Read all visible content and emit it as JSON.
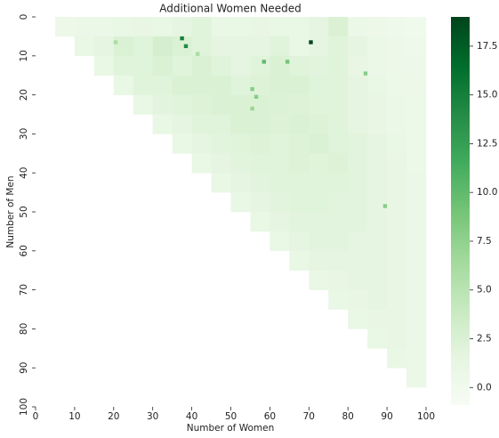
{
  "chart_data": {
    "type": "heatmap",
    "title": "Additional Women Needed",
    "x_label": "Number of Women",
    "y_label": "Number of Men",
    "xlim": [
      0,
      100
    ],
    "ylim": [
      0,
      100
    ],
    "xticks": [
      0,
      10,
      20,
      30,
      40,
      50,
      60,
      70,
      80,
      90,
      100
    ],
    "yticks": [
      0,
      10,
      20,
      30,
      40,
      50,
      60,
      70,
      80,
      90,
      100
    ],
    "xbins": [
      0,
      5,
      10,
      15,
      20,
      25,
      30,
      35,
      40,
      45,
      50,
      55,
      60,
      65,
      70,
      75,
      80,
      85,
      90,
      95,
      100
    ],
    "ybins": [
      0,
      5,
      10,
      15,
      20,
      25,
      30,
      35,
      40,
      45,
      50,
      55,
      60,
      65,
      70,
      75,
      80,
      85,
      90,
      95,
      100
    ],
    "z": [
      [
        null,
        0.5,
        0.8,
        0.7,
        1,
        1.2,
        1,
        1.5,
        2,
        1,
        1,
        1.2,
        1,
        1,
        1.5,
        2.5,
        0.8,
        0.5,
        0.3,
        0.2
      ],
      [
        null,
        null,
        1,
        1.5,
        2.5,
        2,
        3,
        2.5,
        2,
        1.5,
        1.5,
        1.5,
        2,
        1,
        1.5,
        2,
        1.5,
        0.8,
        0.5,
        0.3
      ],
      [
        null,
        null,
        null,
        1,
        2,
        2,
        2.5,
        2,
        2.5,
        2,
        1.5,
        2,
        2.5,
        2,
        1.8,
        2,
        1.2,
        0.8,
        0.5,
        0.4
      ],
      [
        null,
        null,
        null,
        null,
        1,
        2,
        2,
        2.5,
        2.5,
        2.5,
        2,
        2.2,
        2.5,
        2.5,
        2,
        2,
        1.5,
        1,
        0.6,
        0.5
      ],
      [
        null,
        null,
        null,
        null,
        null,
        1,
        1.8,
        2,
        2.2,
        2.5,
        2.5,
        2.5,
        2.3,
        2.2,
        2,
        2,
        1.5,
        1.2,
        0.8,
        0.6
      ],
      [
        null,
        null,
        null,
        null,
        null,
        null,
        1,
        1.5,
        2,
        2,
        2.5,
        2.5,
        2.2,
        2.5,
        2.2,
        2,
        1.5,
        1.2,
        0.8,
        0.6
      ],
      [
        null,
        null,
        null,
        null,
        null,
        null,
        null,
        1,
        1.5,
        1.8,
        2,
        2.2,
        2,
        2.2,
        2.5,
        2,
        1.8,
        1.5,
        1,
        0.6
      ],
      [
        null,
        null,
        null,
        null,
        null,
        null,
        null,
        null,
        1,
        1.5,
        1.8,
        2,
        2,
        2.2,
        2,
        2.2,
        1.8,
        1.5,
        1.2,
        0.6
      ],
      [
        null,
        null,
        null,
        null,
        null,
        null,
        null,
        null,
        null,
        1,
        1.5,
        1.8,
        2,
        2,
        2,
        2,
        1.8,
        1.5,
        1.2,
        0.8
      ],
      [
        null,
        null,
        null,
        null,
        null,
        null,
        null,
        null,
        null,
        null,
        1,
        1.5,
        1.8,
        2,
        2,
        1.8,
        1.8,
        1.5,
        1.2,
        0.8
      ],
      [
        null,
        null,
        null,
        null,
        null,
        null,
        null,
        null,
        null,
        null,
        null,
        1,
        1.5,
        1.8,
        1.8,
        1.8,
        1.8,
        1.5,
        1.2,
        0.8
      ],
      [
        null,
        null,
        null,
        null,
        null,
        null,
        null,
        null,
        null,
        null,
        null,
        null,
        1,
        1.5,
        1.8,
        1.8,
        1.5,
        1.5,
        1.2,
        0.8
      ],
      [
        null,
        null,
        null,
        null,
        null,
        null,
        null,
        null,
        null,
        null,
        null,
        null,
        null,
        1,
        1.5,
        1.5,
        1.5,
        1.5,
        1.2,
        0.8
      ],
      [
        null,
        null,
        null,
        null,
        null,
        null,
        null,
        null,
        null,
        null,
        null,
        null,
        null,
        null,
        1,
        1.2,
        1.5,
        1.5,
        1.2,
        0.8
      ],
      [
        null,
        null,
        null,
        null,
        null,
        null,
        null,
        null,
        null,
        null,
        null,
        null,
        null,
        null,
        null,
        1,
        1.2,
        1.5,
        1.2,
        0.8
      ],
      [
        null,
        null,
        null,
        null,
        null,
        null,
        null,
        null,
        null,
        null,
        null,
        null,
        null,
        null,
        null,
        null,
        1,
        1.2,
        1.2,
        0.8
      ],
      [
        null,
        null,
        null,
        null,
        null,
        null,
        null,
        null,
        null,
        null,
        null,
        null,
        null,
        null,
        null,
        null,
        null,
        1,
        1.2,
        0.8
      ],
      [
        null,
        null,
        null,
        null,
        null,
        null,
        null,
        null,
        null,
        null,
        null,
        null,
        null,
        null,
        null,
        null,
        null,
        null,
        1,
        0.8
      ],
      [
        null,
        null,
        null,
        null,
        null,
        null,
        null,
        null,
        null,
        null,
        null,
        null,
        null,
        null,
        null,
        null,
        null,
        null,
        null,
        0.8
      ],
      [
        null,
        null,
        null,
        null,
        null,
        null,
        null,
        null,
        null,
        null,
        null,
        null,
        null,
        null,
        null,
        null,
        null,
        null,
        null,
        null
      ]
    ],
    "highlights": {
      "x": [
        37,
        38,
        70,
        58,
        64,
        84,
        55,
        56,
        55,
        89,
        20,
        41
      ],
      "y": [
        5,
        7,
        6,
        11,
        11,
        14,
        18,
        20,
        23,
        48,
        6,
        9
      ],
      "values": [
        15,
        14,
        19,
        10,
        9,
        8,
        8,
        8,
        7,
        8,
        6,
        6
      ]
    },
    "colormap": [
      "#f7fcf5",
      "#e5f5e0",
      "#c7e9c0",
      "#a1d99b",
      "#74c476",
      "#41ab5d",
      "#238b45",
      "#006d2c",
      "#00441b"
    ],
    "clim": [
      -0.9,
      19
    ],
    "cticks": [
      {
        "value": 0,
        "label": "0.0"
      },
      2.5,
      {
        "value": 5,
        "label": "5.0"
      },
      7.5,
      {
        "value": 10,
        "label": "10.0"
      },
      12.5,
      {
        "value": 15,
        "label": "15.0"
      },
      17.5
    ]
  }
}
